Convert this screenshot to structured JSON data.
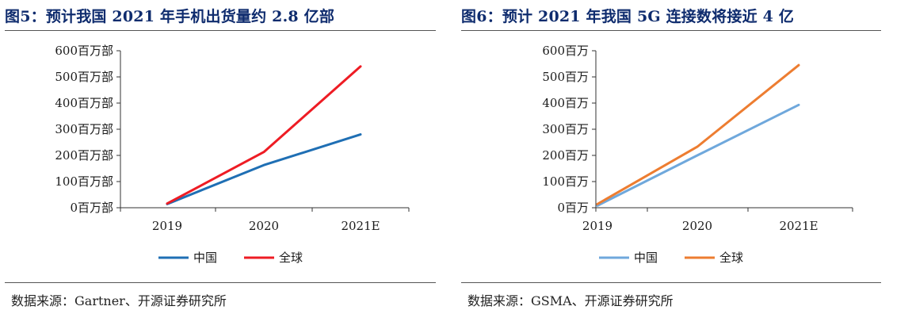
{
  "panels": [
    {
      "title": "图5：预计我国 2021 年手机出货量约 2.8 亿部",
      "source": "数据来源：Gartner、开源证券研究所",
      "chart_data": {
        "type": "line",
        "categories": [
          "2019",
          "2020",
          "2021E"
        ],
        "y_tick_labels": [
          "0百万部",
          "100百万部",
          "200百万部",
          "300百万部",
          "400百万部",
          "500百万部",
          "600百万部"
        ],
        "ylim": [
          0,
          600
        ],
        "yticks": [
          0,
          100,
          200,
          300,
          400,
          500,
          600
        ],
        "grid": false,
        "legend_position": "bottom",
        "series": [
          {
            "name": "中国",
            "color": "#1f6fb4",
            "values": [
              14,
              163,
              280
            ]
          },
          {
            "name": "全球",
            "color": "#ee1c24",
            "values": [
              16,
              213,
              540
            ]
          }
        ]
      }
    },
    {
      "title": "图6：预计 2021 年我国 5G 连接数将接近 4 亿",
      "source": "数据来源：GSMA、开源证券研究所",
      "chart_data": {
        "type": "line",
        "categories": [
          "2019",
          "2020",
          "2021E"
        ],
        "y_tick_labels": [
          "0百万",
          "100百万",
          "200百万",
          "300百万",
          "400百万",
          "500百万",
          "600百万"
        ],
        "ylim": [
          0,
          600
        ],
        "yticks": [
          0,
          100,
          200,
          300,
          400,
          500,
          600
        ],
        "grid": false,
        "legend_position": "bottom",
        "series": [
          {
            "name": "中国",
            "color": "#6fa8dc",
            "values": [
              8,
              200,
              393
            ]
          },
          {
            "name": "全球",
            "color": "#ed7d31",
            "values": [
              14,
              233,
              545
            ]
          }
        ]
      }
    }
  ]
}
